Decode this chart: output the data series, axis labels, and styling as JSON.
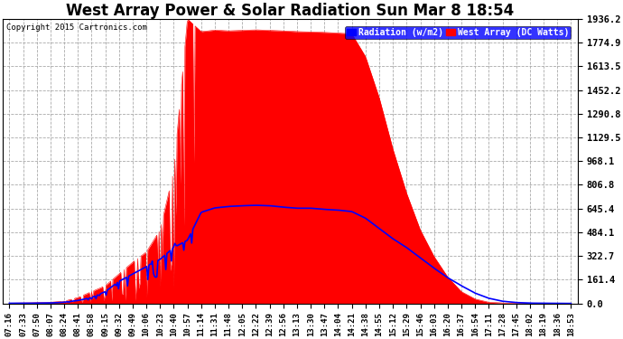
{
  "title": "West Array Power & Solar Radiation Sun Mar 8 18:54",
  "copyright": "Copyright 2015 Cartronics.com",
  "legend_labels": [
    "Radiation (w/m2)",
    "West Array (DC Watts)"
  ],
  "ymin": 0.0,
  "ymax": 1936.2,
  "yticks": [
    0.0,
    161.4,
    322.7,
    484.1,
    645.4,
    806.8,
    968.1,
    1129.5,
    1290.8,
    1452.2,
    1613.5,
    1774.9,
    1936.2
  ],
  "background_color": "#ffffff",
  "plot_bg_color": "#ffffff",
  "grid_color": "#aaaaaa",
  "west_array_color": "#ff0000",
  "radiation_color": "#0000ff",
  "xtick_labels": [
    "07:16",
    "07:33",
    "07:50",
    "08:07",
    "08:24",
    "08:41",
    "08:58",
    "09:15",
    "09:32",
    "09:49",
    "10:06",
    "10:23",
    "10:40",
    "10:57",
    "11:14",
    "11:31",
    "11:48",
    "12:05",
    "12:22",
    "12:39",
    "12:56",
    "13:13",
    "13:30",
    "13:47",
    "14:04",
    "14:21",
    "14:38",
    "14:55",
    "15:12",
    "15:29",
    "15:46",
    "16:03",
    "16:20",
    "16:37",
    "16:54",
    "17:11",
    "17:28",
    "17:45",
    "18:02",
    "18:19",
    "18:36",
    "18:53"
  ],
  "west_array_values": [
    2,
    3,
    5,
    8,
    15,
    40,
    80,
    120,
    200,
    280,
    350,
    500,
    900,
    1936,
    1850,
    1860,
    1855,
    1858,
    1862,
    1858,
    1855,
    1850,
    1848,
    1845,
    1840,
    1835,
    1680,
    1400,
    1050,
    750,
    500,
    320,
    180,
    80,
    30,
    8,
    3,
    1,
    0,
    0,
    0,
    0
  ],
  "radiation_values": [
    1,
    1,
    2,
    3,
    8,
    20,
    40,
    80,
    150,
    200,
    250,
    300,
    380,
    430,
    620,
    650,
    660,
    665,
    668,
    665,
    655,
    648,
    648,
    640,
    635,
    625,
    580,
    510,
    440,
    380,
    310,
    240,
    175,
    120,
    70,
    35,
    15,
    6,
    2,
    1,
    0,
    0
  ],
  "title_fontsize": 12,
  "tick_fontsize": 6.5,
  "ytick_fontsize": 7.5
}
